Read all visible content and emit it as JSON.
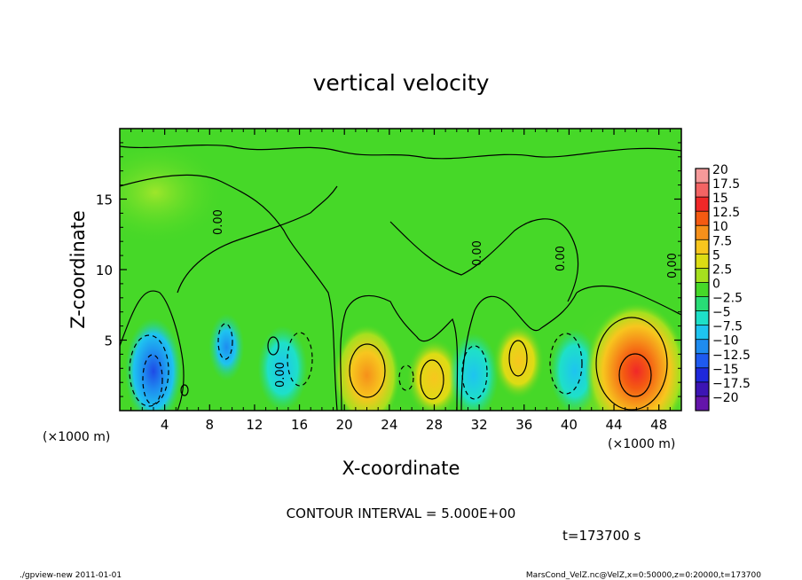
{
  "chart_data": {
    "type": "heatmap",
    "title": "vertical velocity",
    "xlabel": "X-coordinate",
    "ylabel": "Z-coordinate",
    "x_unit_label_left": "(×1000 m)",
    "x_unit_label_right": "(×1000 m)",
    "xlim": [
      0,
      50
    ],
    "ylim": [
      0,
      20
    ],
    "xticks": [
      4,
      8,
      12,
      16,
      20,
      24,
      28,
      32,
      36,
      40,
      44,
      48
    ],
    "yticks": [
      5,
      10,
      15
    ],
    "contour_interval_text": "CONTOUR INTERVAL = 5.000E+00",
    "time_text": "t=173700 s",
    "zero_contour_label": "0.00",
    "colorbar": {
      "levels": [
        20,
        17.5,
        15,
        12.5,
        10,
        7.5,
        5,
        2.5,
        0,
        -2.5,
        -5,
        -7.5,
        -10,
        -12.5,
        -15,
        -17.5,
        -20
      ],
      "labels": [
        "20",
        "17.5",
        "15",
        "12.5",
        "10",
        "7.5",
        "5",
        "2.5",
        "0",
        "−2.5",
        "−5",
        "−7.5",
        "−10",
        "−12.5",
        "−15",
        "−17.5",
        "−20"
      ],
      "colors": [
        "#f59a9a",
        "#f36464",
        "#f02828",
        "#f45a12",
        "#f6901a",
        "#f7c61e",
        "#dcdc14",
        "#a6e01e",
        "#46d828",
        "#28dc76",
        "#1ee0c8",
        "#1ec4f0",
        "#1e8cf0",
        "#1e5af0",
        "#1e28dc",
        "#3c14b4",
        "#6414aa"
      ]
    },
    "features": [
      {
        "x": 3,
        "z": 2.8,
        "w": -14
      },
      {
        "x": 9.5,
        "z": 4.5,
        "w": -9
      },
      {
        "x": 14.5,
        "z": 3.0,
        "w": -4
      },
      {
        "x": 22,
        "z": 2.5,
        "w": 10
      },
      {
        "x": 28,
        "z": 2.3,
        "w": 7.5
      },
      {
        "x": 31.5,
        "z": 2.5,
        "w": -5
      },
      {
        "x": 35.5,
        "z": 3.5,
        "w": 5
      },
      {
        "x": 40.5,
        "z": 2.8,
        "w": -5
      },
      {
        "x": 46,
        "z": 2.8,
        "w": 14
      }
    ],
    "footer_left": "./gpview-new  2011-01-01",
    "footer_right": "MarsCond_VelZ.nc@VelZ,x=0:50000,z=0:20000,t=173700"
  }
}
